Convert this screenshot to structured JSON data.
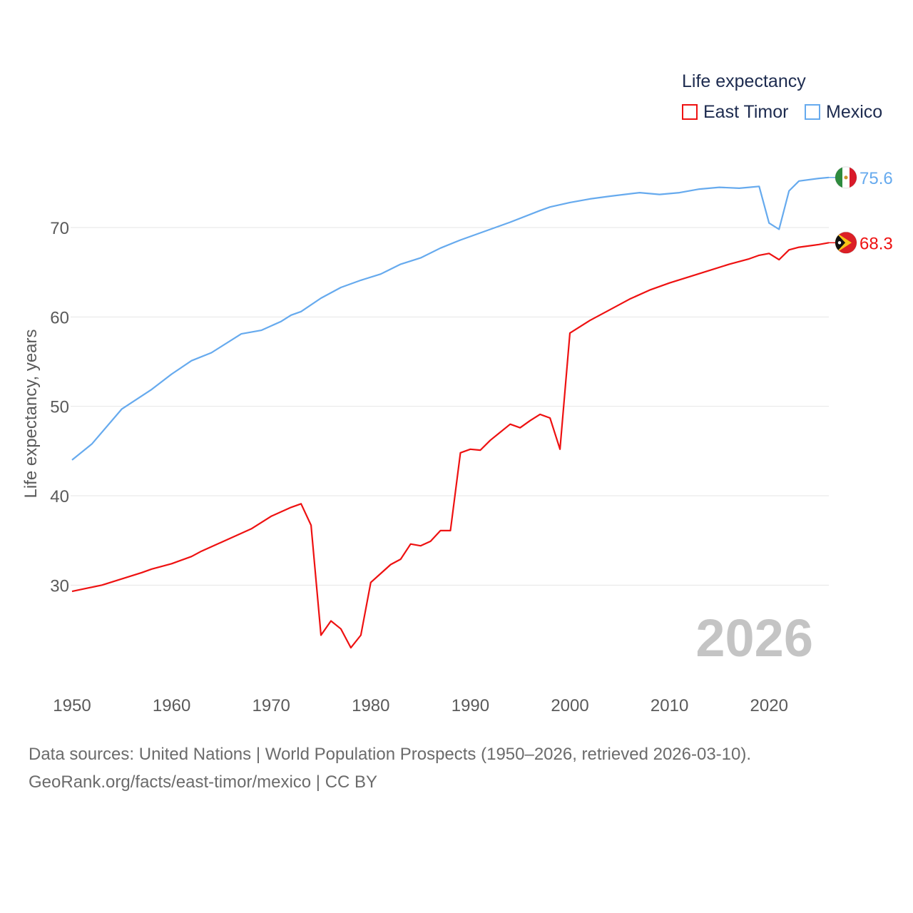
{
  "colors": {
    "east_timor": "#ee1111",
    "mexico": "#66aaee",
    "axis_text": "#5a5a5a",
    "grid": "#e6e6e6",
    "year_watermark": "#c4c4c4"
  },
  "legend": {
    "title": "Life expectancy",
    "items": [
      {
        "label": "East Timor",
        "color": "#ee1111"
      },
      {
        "label": "Mexico",
        "color": "#66aaee"
      }
    ]
  },
  "footer": {
    "line1": "Data sources: United Nations | World Population Prospects (1950–2026, retrieved 2026-03-10).",
    "line2": "GeoRank.org/facts/east-timor/mexico | CC BY"
  },
  "chart_data": {
    "type": "line",
    "title": "Life expectancy",
    "xlabel": "",
    "ylabel": "Life expectancy, years",
    "xlim": [
      1950,
      2026
    ],
    "ylim": [
      19,
      80
    ],
    "x_ticks": [
      1950,
      1960,
      1970,
      1980,
      1990,
      2000,
      2010,
      2020
    ],
    "y_ticks": [
      30,
      40,
      50,
      60,
      70
    ],
    "grid": true,
    "current_year": "2026",
    "series": [
      {
        "name": "Mexico",
        "icon": "mexico-flag-icon",
        "end_label": "75.6",
        "x": [
          1950,
          1952,
          1955,
          1958,
          1960,
          1962,
          1964,
          1967,
          1969,
          1971,
          1972,
          1973,
          1975,
          1977,
          1979,
          1981,
          1983,
          1985,
          1987,
          1989,
          1991,
          1994,
          1997,
          1998,
          2000,
          2002,
          2004,
          2007,
          2009,
          2011,
          2013,
          2015,
          2017,
          2018,
          2019,
          2020,
          2021,
          2022,
          2023,
          2025,
          2026
        ],
        "values": [
          44.0,
          45.8,
          49.7,
          51.9,
          53.6,
          55.1,
          56.0,
          58.1,
          58.5,
          59.5,
          60.2,
          60.6,
          62.1,
          63.3,
          64.1,
          64.8,
          65.9,
          66.6,
          67.7,
          68.6,
          69.4,
          70.6,
          71.9,
          72.3,
          72.8,
          73.2,
          73.5,
          73.9,
          73.7,
          73.9,
          74.3,
          74.5,
          74.4,
          74.5,
          74.6,
          70.5,
          69.8,
          74.1,
          75.2,
          75.5,
          75.6
        ]
      },
      {
        "name": "East Timor",
        "icon": "east-timor-flag-icon",
        "end_label": "68.3",
        "x": [
          1950,
          1953,
          1957,
          1958,
          1960,
          1962,
          1963,
          1965,
          1968,
          1970,
          1972,
          1973,
          1974,
          1975,
          1976,
          1977,
          1978,
          1979,
          1980,
          1981,
          1982,
          1983,
          1984,
          1985,
          1986,
          1987,
          1988,
          1989,
          1990,
          1991,
          1992,
          1993,
          1994,
          1995,
          1996,
          1997,
          1998,
          1999,
          2000,
          2002,
          2004,
          2006,
          2008,
          2010,
          2012,
          2014,
          2016,
          2018,
          2019,
          2020,
          2021,
          2022,
          2023,
          2025,
          2026
        ],
        "values": [
          29.3,
          30.0,
          31.4,
          31.8,
          32.4,
          33.2,
          33.8,
          34.8,
          36.3,
          37.7,
          38.7,
          39.1,
          36.7,
          24.4,
          26.0,
          25.1,
          23.0,
          24.4,
          30.3,
          31.3,
          32.3,
          32.9,
          34.6,
          34.4,
          34.9,
          36.1,
          36.1,
          44.8,
          45.2,
          45.1,
          46.2,
          47.1,
          48.0,
          47.6,
          48.4,
          49.1,
          48.7,
          45.2,
          58.2,
          59.6,
          60.8,
          62.0,
          63.0,
          63.8,
          64.5,
          65.2,
          65.9,
          66.5,
          66.9,
          67.1,
          66.4,
          67.5,
          67.8,
          68.1,
          68.3
        ]
      }
    ]
  }
}
